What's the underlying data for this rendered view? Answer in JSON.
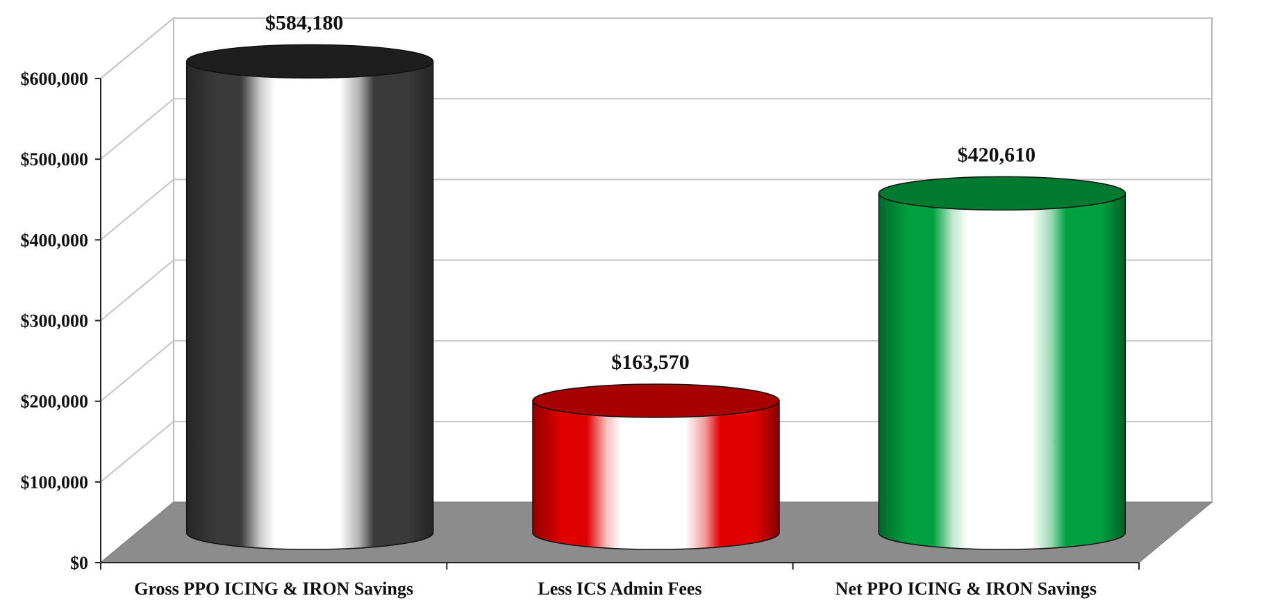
{
  "chart_data": {
    "type": "bar",
    "style": "3d-cylinder",
    "title": "",
    "xlabel": "",
    "ylabel": "",
    "categories": [
      "Gross PPO ICING & IRON Savings",
      "Less ICS Admin Fees",
      "Net PPO ICING & IRON Savings"
    ],
    "values": [
      584180,
      163570,
      420610
    ],
    "data_labels": [
      "$584,180",
      "$163,570",
      "$420,610"
    ],
    "bar_colors": [
      "#3a3a3a",
      "#e00000",
      "#00a040"
    ],
    "bar_top_colors": [
      "#1e1e1e",
      "#a80000",
      "#007a30"
    ],
    "ylim": [
      0,
      600000
    ],
    "yticks": [
      0,
      100000,
      200000,
      300000,
      400000,
      500000,
      600000
    ],
    "ytick_labels": [
      "$0",
      "$100,000",
      "$200,000",
      "$300,000",
      "$400,000",
      "$500,000",
      "$600,000"
    ],
    "grid": true,
    "legend": "none",
    "floor_color": "#8c8c8c"
  }
}
